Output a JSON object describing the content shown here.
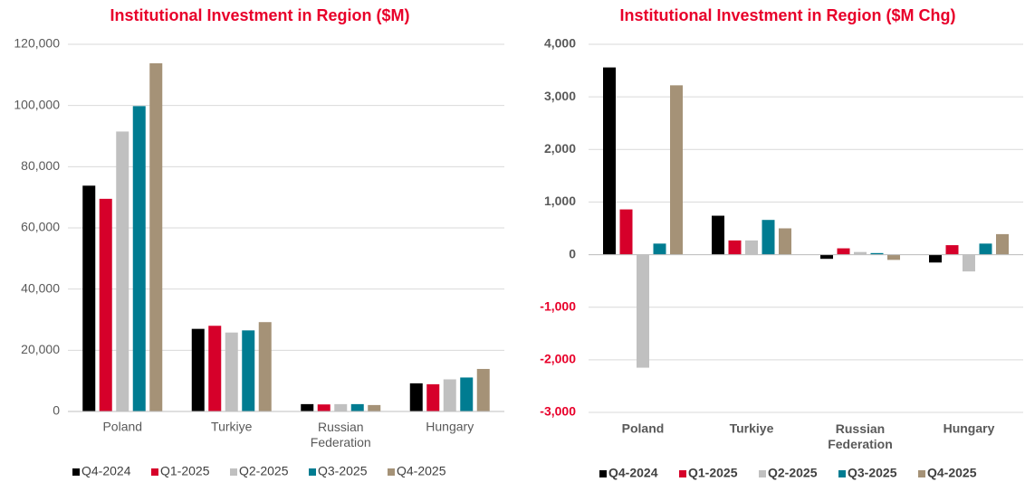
{
  "chart_data": [
    {
      "type": "bar",
      "title": "Institutional Investment in Region ($M)",
      "categories": [
        "Poland",
        "Turkiye",
        "Russian Federation",
        "Hungary"
      ],
      "series": [
        {
          "name": "Q4-2024",
          "color": "#000000",
          "values": [
            73800,
            27000,
            2400,
            9200
          ]
        },
        {
          "name": "Q1-2025",
          "color": "#d6002a",
          "values": [
            69500,
            28000,
            2300,
            8900
          ]
        },
        {
          "name": "Q2-2025",
          "color": "#c0c0c0",
          "values": [
            91500,
            25800,
            2400,
            10500
          ]
        },
        {
          "name": "Q3-2025",
          "color": "#007c91",
          "values": [
            99800,
            26500,
            2400,
            11100
          ]
        },
        {
          "name": "Q4-2025",
          "color": "#a59277",
          "values": [
            113800,
            29200,
            2100,
            13900
          ]
        }
      ],
      "ylim": [
        0,
        120000
      ],
      "yticks": [
        0,
        {
          "value": 20000,
          "label": "20,000"
        },
        {
          "value": 40000,
          "label": "40,000"
        },
        {
          "value": 60000,
          "label": "60,000"
        },
        {
          "value": 80000,
          "label": "80,000"
        },
        {
          "value": 100000,
          "label": "100,000"
        },
        {
          "value": 120000,
          "label": "120,000"
        }
      ],
      "grid": true,
      "legend": "bottom"
    },
    {
      "type": "bar",
      "title": "Institutional Investment in Region ($M Chg)",
      "categories": [
        "Poland",
        "Turkiye",
        "Russian Federation",
        "Hungary"
      ],
      "series": [
        {
          "name": "Q4-2024",
          "color": "#000000",
          "values": [
            3560,
            740,
            -80,
            -150
          ]
        },
        {
          "name": "Q1-2025",
          "color": "#d6002a",
          "values": [
            860,
            270,
            120,
            180
          ]
        },
        {
          "name": "Q2-2025",
          "color": "#c0c0c0",
          "values": [
            -2150,
            270,
            50,
            -320
          ]
        },
        {
          "name": "Q3-2025",
          "color": "#007c91",
          "values": [
            210,
            660,
            30,
            210
          ]
        },
        {
          "name": "Q4-2025",
          "color": "#a59277",
          "values": [
            3220,
            500,
            -100,
            390
          ]
        }
      ],
      "ylim": [
        -3000,
        4000
      ],
      "yticks": [
        {
          "value": -3000,
          "label": "-3,000"
        },
        {
          "value": -2000,
          "label": "-2,000"
        },
        {
          "value": -1000,
          "label": "-1,000"
        },
        0,
        {
          "value": 1000,
          "label": "1,000"
        },
        {
          "value": 2000,
          "label": "2,000"
        },
        {
          "value": 3000,
          "label": "3,000"
        },
        {
          "value": 4000,
          "label": "4,000"
        }
      ],
      "negative_tick_color": "#e8002a",
      "grid": true,
      "legend": "bottom"
    }
  ]
}
